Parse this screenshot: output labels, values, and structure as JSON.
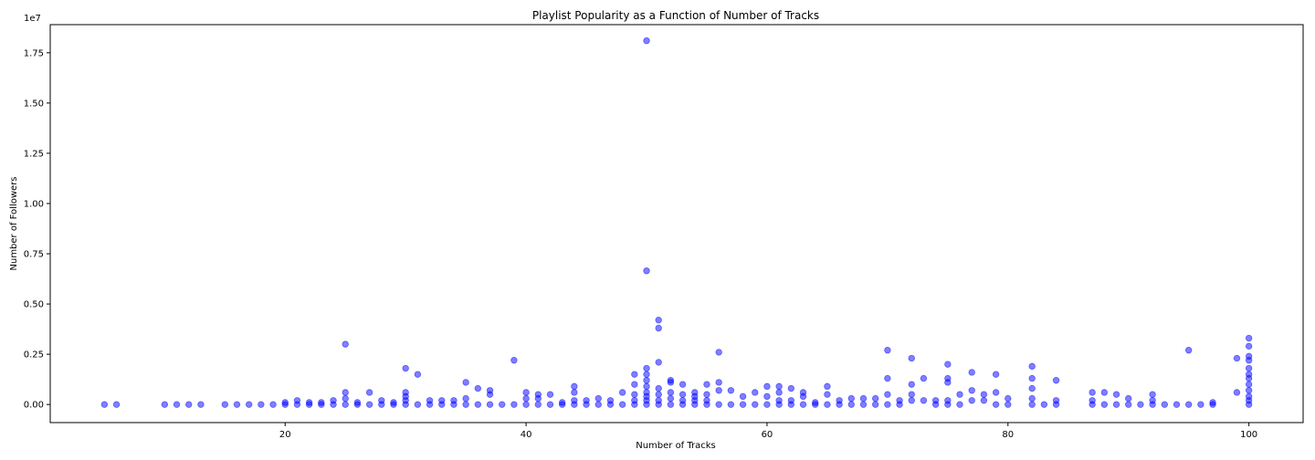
{
  "chart_data": {
    "type": "scatter",
    "title": "Playlist Popularity as a Function of Number of Tracks",
    "xlabel": "Number of Tracks",
    "ylabel": "Number of Followers",
    "y_offset_label": "1e7",
    "xlim": [
      0.5,
      104.5
    ],
    "ylim": [
      -0.09,
      1.89
    ],
    "y_units_note": "y values in units of 1e7 followers",
    "x_ticks": [
      20,
      40,
      60,
      80,
      100
    ],
    "x_tick_labels": [
      "20",
      "40",
      "60",
      "80",
      "100"
    ],
    "y_ticks": [
      0.0,
      0.25,
      0.5,
      0.75,
      1.0,
      1.25,
      1.5,
      1.75
    ],
    "y_tick_labels": [
      "0.00",
      "0.25",
      "0.50",
      "0.75",
      "1.00",
      "1.25",
      "1.50",
      "1.75"
    ],
    "grid": false,
    "marker_color": "#0000ff",
    "marker_alpha": 0.5,
    "points": [
      [
        5,
        0.0
      ],
      [
        6,
        0.0
      ],
      [
        10,
        0.0
      ],
      [
        11,
        0.0
      ],
      [
        12,
        0.0
      ],
      [
        13,
        0.0
      ],
      [
        15,
        0.0
      ],
      [
        16,
        0.0
      ],
      [
        17,
        0.0
      ],
      [
        18,
        0.0
      ],
      [
        19,
        0.0
      ],
      [
        20,
        0.0
      ],
      [
        20,
        0.01
      ],
      [
        21,
        0.0
      ],
      [
        21,
        0.02
      ],
      [
        22,
        0.0
      ],
      [
        22,
        0.01
      ],
      [
        23,
        0.0
      ],
      [
        23,
        0.01
      ],
      [
        24,
        0.0
      ],
      [
        24,
        0.02
      ],
      [
        25,
        0.0
      ],
      [
        25,
        0.03
      ],
      [
        25,
        0.06
      ],
      [
        25,
        0.3
      ],
      [
        26,
        0.0
      ],
      [
        26,
        0.01
      ],
      [
        27,
        0.0
      ],
      [
        27,
        0.06
      ],
      [
        28,
        0.0
      ],
      [
        28,
        0.02
      ],
      [
        29,
        0.0
      ],
      [
        29,
        0.01
      ],
      [
        30,
        0.0
      ],
      [
        30,
        0.02
      ],
      [
        30,
        0.04
      ],
      [
        30,
        0.06
      ],
      [
        30,
        0.18
      ],
      [
        31,
        0.0
      ],
      [
        31,
        0.15
      ],
      [
        32,
        0.0
      ],
      [
        32,
        0.02
      ],
      [
        33,
        0.0
      ],
      [
        33,
        0.02
      ],
      [
        34,
        0.0
      ],
      [
        34,
        0.02
      ],
      [
        35,
        0.0
      ],
      [
        35,
        0.03
      ],
      [
        35,
        0.11
      ],
      [
        36,
        0.0
      ],
      [
        36,
        0.08
      ],
      [
        37,
        0.0
      ],
      [
        37,
        0.05
      ],
      [
        37,
        0.07
      ],
      [
        38,
        0.0
      ],
      [
        39,
        0.0
      ],
      [
        39,
        0.22
      ],
      [
        40,
        0.0
      ],
      [
        40,
        0.03
      ],
      [
        40,
        0.06
      ],
      [
        41,
        0.0
      ],
      [
        41,
        0.03
      ],
      [
        41,
        0.05
      ],
      [
        42,
        0.0
      ],
      [
        42,
        0.05
      ],
      [
        43,
        0.0
      ],
      [
        43,
        0.01
      ],
      [
        44,
        0.0
      ],
      [
        44,
        0.02
      ],
      [
        44,
        0.06
      ],
      [
        44,
        0.09
      ],
      [
        45,
        0.0
      ],
      [
        45,
        0.02
      ],
      [
        46,
        0.0
      ],
      [
        46,
        0.03
      ],
      [
        47,
        0.0
      ],
      [
        47,
        0.02
      ],
      [
        48,
        0.0
      ],
      [
        48,
        0.06
      ],
      [
        49,
        0.0
      ],
      [
        49,
        0.02
      ],
      [
        49,
        0.05
      ],
      [
        49,
        0.1
      ],
      [
        49,
        0.15
      ],
      [
        50,
        0.0
      ],
      [
        50,
        0.02
      ],
      [
        50,
        0.04
      ],
      [
        50,
        0.06
      ],
      [
        50,
        0.09
      ],
      [
        50,
        0.12
      ],
      [
        50,
        0.15
      ],
      [
        50,
        0.18
      ],
      [
        50,
        0.665
      ],
      [
        50,
        1.81
      ],
      [
        51,
        0.0
      ],
      [
        51,
        0.02
      ],
      [
        51,
        0.05
      ],
      [
        51,
        0.08
      ],
      [
        51,
        0.21
      ],
      [
        51,
        0.38
      ],
      [
        51,
        0.42
      ],
      [
        52,
        0.0
      ],
      [
        52,
        0.03
      ],
      [
        52,
        0.06
      ],
      [
        52,
        0.11
      ],
      [
        52,
        0.12
      ],
      [
        53,
        0.0
      ],
      [
        53,
        0.02
      ],
      [
        53,
        0.05
      ],
      [
        53,
        0.1
      ],
      [
        54,
        0.0
      ],
      [
        54,
        0.02
      ],
      [
        54,
        0.04
      ],
      [
        54,
        0.06
      ],
      [
        55,
        0.0
      ],
      [
        55,
        0.02
      ],
      [
        55,
        0.05
      ],
      [
        55,
        0.1
      ],
      [
        56,
        0.0
      ],
      [
        56,
        0.07
      ],
      [
        56,
        0.11
      ],
      [
        56,
        0.26
      ],
      [
        57,
        0.0
      ],
      [
        57,
        0.07
      ],
      [
        58,
        0.0
      ],
      [
        58,
        0.04
      ],
      [
        59,
        0.0
      ],
      [
        59,
        0.06
      ],
      [
        60,
        0.0
      ],
      [
        60,
        0.04
      ],
      [
        60,
        0.09
      ],
      [
        61,
        0.0
      ],
      [
        61,
        0.02
      ],
      [
        61,
        0.06
      ],
      [
        61,
        0.09
      ],
      [
        62,
        0.0
      ],
      [
        62,
        0.02
      ],
      [
        62,
        0.08
      ],
      [
        63,
        0.0
      ],
      [
        63,
        0.04
      ],
      [
        63,
        0.06
      ],
      [
        64,
        0.0
      ],
      [
        64,
        0.01
      ],
      [
        65,
        0.0
      ],
      [
        65,
        0.05
      ],
      [
        65,
        0.09
      ],
      [
        66,
        0.0
      ],
      [
        66,
        0.02
      ],
      [
        67,
        0.0
      ],
      [
        67,
        0.03
      ],
      [
        68,
        0.0
      ],
      [
        68,
        0.03
      ],
      [
        69,
        0.0
      ],
      [
        69,
        0.03
      ],
      [
        70,
        0.0
      ],
      [
        70,
        0.05
      ],
      [
        70,
        0.13
      ],
      [
        70,
        0.27
      ],
      [
        71,
        0.0
      ],
      [
        71,
        0.02
      ],
      [
        72,
        0.02
      ],
      [
        72,
        0.05
      ],
      [
        72,
        0.1
      ],
      [
        72,
        0.23
      ],
      [
        73,
        0.02
      ],
      [
        73,
        0.13
      ],
      [
        74,
        0.0
      ],
      [
        74,
        0.02
      ],
      [
        75,
        0.0
      ],
      [
        75,
        0.02
      ],
      [
        75,
        0.11
      ],
      [
        75,
        0.13
      ],
      [
        75,
        0.2
      ],
      [
        76,
        0.0
      ],
      [
        76,
        0.05
      ],
      [
        77,
        0.02
      ],
      [
        77,
        0.07
      ],
      [
        77,
        0.16
      ],
      [
        78,
        0.02
      ],
      [
        78,
        0.05
      ],
      [
        79,
        0.0
      ],
      [
        79,
        0.06
      ],
      [
        79,
        0.15
      ],
      [
        80,
        0.0
      ],
      [
        80,
        0.03
      ],
      [
        82,
        0.0
      ],
      [
        82,
        0.03
      ],
      [
        82,
        0.08
      ],
      [
        82,
        0.13
      ],
      [
        82,
        0.19
      ],
      [
        83,
        0.0
      ],
      [
        84,
        0.0
      ],
      [
        84,
        0.02
      ],
      [
        84,
        0.12
      ],
      [
        87,
        0.0
      ],
      [
        87,
        0.02
      ],
      [
        87,
        0.06
      ],
      [
        88,
        0.0
      ],
      [
        88,
        0.06
      ],
      [
        89,
        0.0
      ],
      [
        89,
        0.05
      ],
      [
        90,
        0.0
      ],
      [
        90,
        0.03
      ],
      [
        91,
        0.0
      ],
      [
        92,
        0.0
      ],
      [
        92,
        0.02
      ],
      [
        92,
        0.05
      ],
      [
        93,
        0.0
      ],
      [
        94,
        0.0
      ],
      [
        95,
        0.0
      ],
      [
        95,
        0.27
      ],
      [
        96,
        0.0
      ],
      [
        97,
        0.0
      ],
      [
        97,
        0.01
      ],
      [
        99,
        0.06
      ],
      [
        99,
        0.23
      ],
      [
        100,
        0.0
      ],
      [
        100,
        0.02
      ],
      [
        100,
        0.04
      ],
      [
        100,
        0.07
      ],
      [
        100,
        0.1
      ],
      [
        100,
        0.13
      ],
      [
        100,
        0.15
      ],
      [
        100,
        0.18
      ],
      [
        100,
        0.22
      ],
      [
        100,
        0.24
      ],
      [
        100,
        0.29
      ],
      [
        100,
        0.33
      ]
    ]
  }
}
